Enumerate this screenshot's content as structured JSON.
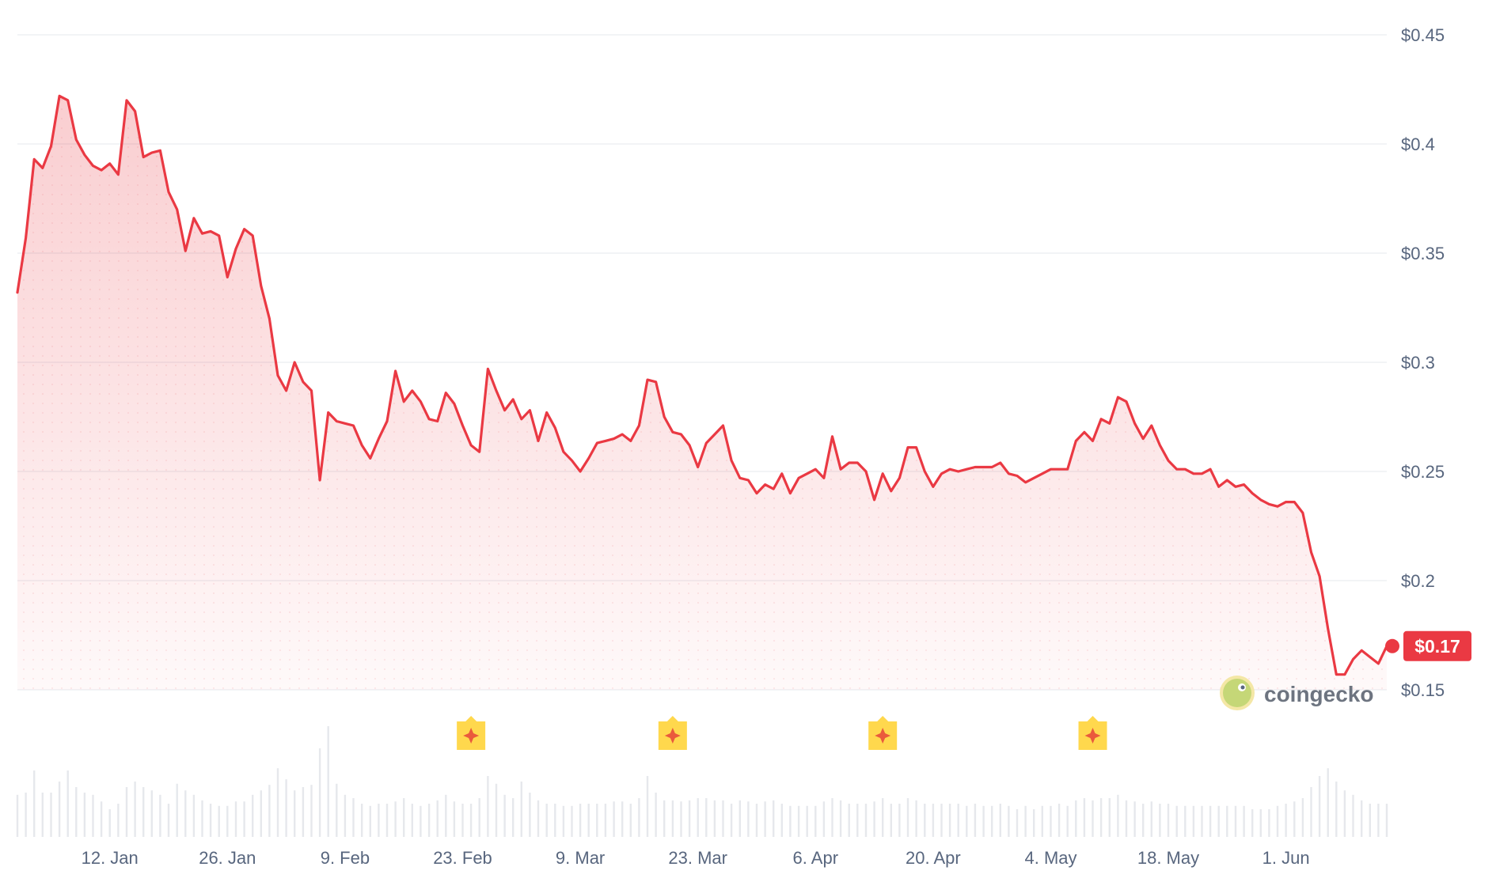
{
  "chart_data": {
    "type": "area",
    "title": "",
    "xlabel": "",
    "ylabel": "",
    "y_ticks": [
      "$0.45",
      "$0.4",
      "$0.35",
      "$0.3",
      "$0.25",
      "$0.2",
      "$0.15"
    ],
    "y_tick_values": [
      0.45,
      0.4,
      0.35,
      0.3,
      0.25,
      0.2,
      0.15
    ],
    "ylim": [
      0.15,
      0.45
    ],
    "x_ticks": [
      "12. Jan",
      "26. Jan",
      "9. Feb",
      "23. Feb",
      "9. Mar",
      "23. Mar",
      "6. Apr",
      "20. Apr",
      "4. May",
      "18. May",
      "1. Jun"
    ],
    "x_tick_days": [
      11,
      25,
      39,
      53,
      67,
      81,
      95,
      109,
      123,
      137,
      151
    ],
    "x_range_days": [
      0,
      163
    ],
    "price_days": [
      0,
      1,
      2,
      3,
      4,
      5,
      6,
      7,
      8,
      9,
      10,
      11,
      12,
      13,
      14,
      15,
      16,
      17,
      18,
      19,
      20,
      21,
      22,
      23,
      24,
      25,
      26,
      27,
      28,
      29,
      30,
      31,
      32,
      33,
      34,
      35,
      36,
      37,
      38,
      39,
      40,
      41,
      42,
      43,
      44,
      45,
      46,
      47,
      48,
      49,
      50,
      51,
      52,
      53,
      54,
      55,
      56,
      57,
      58,
      59,
      60,
      61,
      62,
      63,
      64,
      65,
      66,
      67,
      68,
      69,
      70,
      71,
      72,
      73,
      74,
      75,
      76,
      77,
      78,
      79,
      80,
      81,
      82,
      83,
      84,
      85,
      86,
      87,
      88,
      89,
      90,
      91,
      92,
      93,
      94,
      95,
      96,
      97,
      98,
      99,
      100,
      101,
      102,
      103,
      104,
      105,
      106,
      107,
      108,
      109,
      110,
      111,
      112,
      113,
      114,
      115,
      116,
      117,
      118,
      119,
      120,
      121,
      122,
      123,
      124,
      125,
      126,
      127,
      128,
      129,
      130,
      131,
      132,
      133,
      134,
      135,
      136,
      137,
      138,
      139,
      140,
      141,
      142,
      143,
      144,
      145,
      146,
      147,
      148,
      149,
      150,
      151,
      152,
      153,
      154,
      155,
      156,
      157,
      158,
      159,
      160,
      161,
      162,
      163
    ],
    "price_values": [
      0.332,
      0.357,
      0.393,
      0.389,
      0.399,
      0.422,
      0.42,
      0.402,
      0.395,
      0.39,
      0.388,
      0.391,
      0.386,
      0.42,
      0.415,
      0.394,
      0.396,
      0.397,
      0.378,
      0.37,
      0.351,
      0.366,
      0.359,
      0.36,
      0.358,
      0.339,
      0.352,
      0.361,
      0.358,
      0.335,
      0.32,
      0.294,
      0.287,
      0.3,
      0.291,
      0.287,
      0.246,
      0.277,
      0.273,
      0.272,
      0.271,
      0.262,
      0.256,
      0.265,
      0.273,
      0.296,
      0.282,
      0.287,
      0.282,
      0.274,
      0.273,
      0.286,
      0.281,
      0.271,
      0.262,
      0.259,
      0.297,
      0.287,
      0.278,
      0.283,
      0.274,
      0.278,
      0.264,
      0.277,
      0.27,
      0.259,
      0.255,
      0.25,
      0.256,
      0.263,
      0.264,
      0.265,
      0.267,
      0.264,
      0.271,
      0.292,
      0.291,
      0.275,
      0.268,
      0.267,
      0.262,
      0.252,
      0.263,
      0.267,
      0.271,
      0.255,
      0.247,
      0.246,
      0.24,
      0.244,
      0.242,
      0.249,
      0.24,
      0.247,
      0.249,
      0.251,
      0.247,
      0.266,
      0.251,
      0.254,
      0.254,
      0.25,
      0.237,
      0.249,
      0.241,
      0.247,
      0.261,
      0.261,
      0.25,
      0.243,
      0.249,
      0.251,
      0.25,
      0.251,
      0.252,
      0.252,
      0.252,
      0.254,
      0.249,
      0.248,
      0.245,
      0.247,
      0.249,
      0.251,
      0.251,
      0.251,
      0.264,
      0.268,
      0.264,
      0.274,
      0.272,
      0.284,
      0.282,
      0.272,
      0.265,
      0.271,
      0.262,
      0.255,
      0.251,
      0.251,
      0.249,
      0.249,
      0.251,
      0.243,
      0.246,
      0.243,
      0.244,
      0.24,
      0.237,
      0.235,
      0.234,
      0.236,
      0.236,
      0.231,
      0.213,
      0.202,
      0.178,
      0.157,
      0.157,
      0.164,
      0.168,
      0.165,
      0.162,
      0.17
    ],
    "volume_rel": [
      0.38,
      0.4,
      0.6,
      0.4,
      0.4,
      0.5,
      0.6,
      0.45,
      0.4,
      0.38,
      0.32,
      0.25,
      0.3,
      0.45,
      0.5,
      0.45,
      0.42,
      0.38,
      0.3,
      0.48,
      0.42,
      0.38,
      0.33,
      0.3,
      0.28,
      0.28,
      0.32,
      0.32,
      0.38,
      0.42,
      0.47,
      0.62,
      0.52,
      0.42,
      0.45,
      0.47,
      0.8,
      1.0,
      0.48,
      0.38,
      0.35,
      0.3,
      0.28,
      0.3,
      0.3,
      0.32,
      0.35,
      0.3,
      0.28,
      0.3,
      0.33,
      0.38,
      0.32,
      0.3,
      0.3,
      0.35,
      0.55,
      0.48,
      0.38,
      0.35,
      0.5,
      0.4,
      0.33,
      0.3,
      0.3,
      0.28,
      0.28,
      0.3,
      0.3,
      0.3,
      0.3,
      0.32,
      0.32,
      0.3,
      0.35,
      0.55,
      0.4,
      0.33,
      0.33,
      0.32,
      0.33,
      0.35,
      0.35,
      0.33,
      0.33,
      0.3,
      0.33,
      0.32,
      0.3,
      0.32,
      0.33,
      0.3,
      0.28,
      0.28,
      0.28,
      0.28,
      0.32,
      0.35,
      0.33,
      0.3,
      0.3,
      0.3,
      0.32,
      0.35,
      0.3,
      0.3,
      0.35,
      0.33,
      0.3,
      0.3,
      0.3,
      0.3,
      0.3,
      0.28,
      0.3,
      0.28,
      0.28,
      0.3,
      0.28,
      0.25,
      0.28,
      0.25,
      0.28,
      0.28,
      0.3,
      0.28,
      0.33,
      0.35,
      0.33,
      0.35,
      0.35,
      0.38,
      0.33,
      0.32,
      0.3,
      0.32,
      0.3,
      0.3,
      0.28,
      0.28,
      0.28,
      0.28,
      0.28,
      0.28,
      0.28,
      0.28,
      0.28,
      0.25,
      0.25,
      0.25,
      0.28,
      0.3,
      0.32,
      0.35,
      0.45,
      0.55,
      0.62,
      0.5,
      0.42,
      0.38,
      0.33,
      0.3,
      0.3,
      0.3
    ],
    "event_marker_days": [
      54,
      78,
      103,
      128
    ],
    "current_price_label": "$0.17",
    "current_value": 0.17,
    "line_color": "#ea3943",
    "fill_color": "#ea3943",
    "marker_color": "#ffd84d",
    "grid": true,
    "legend": "none"
  },
  "watermark": {
    "text": "coingecko"
  }
}
